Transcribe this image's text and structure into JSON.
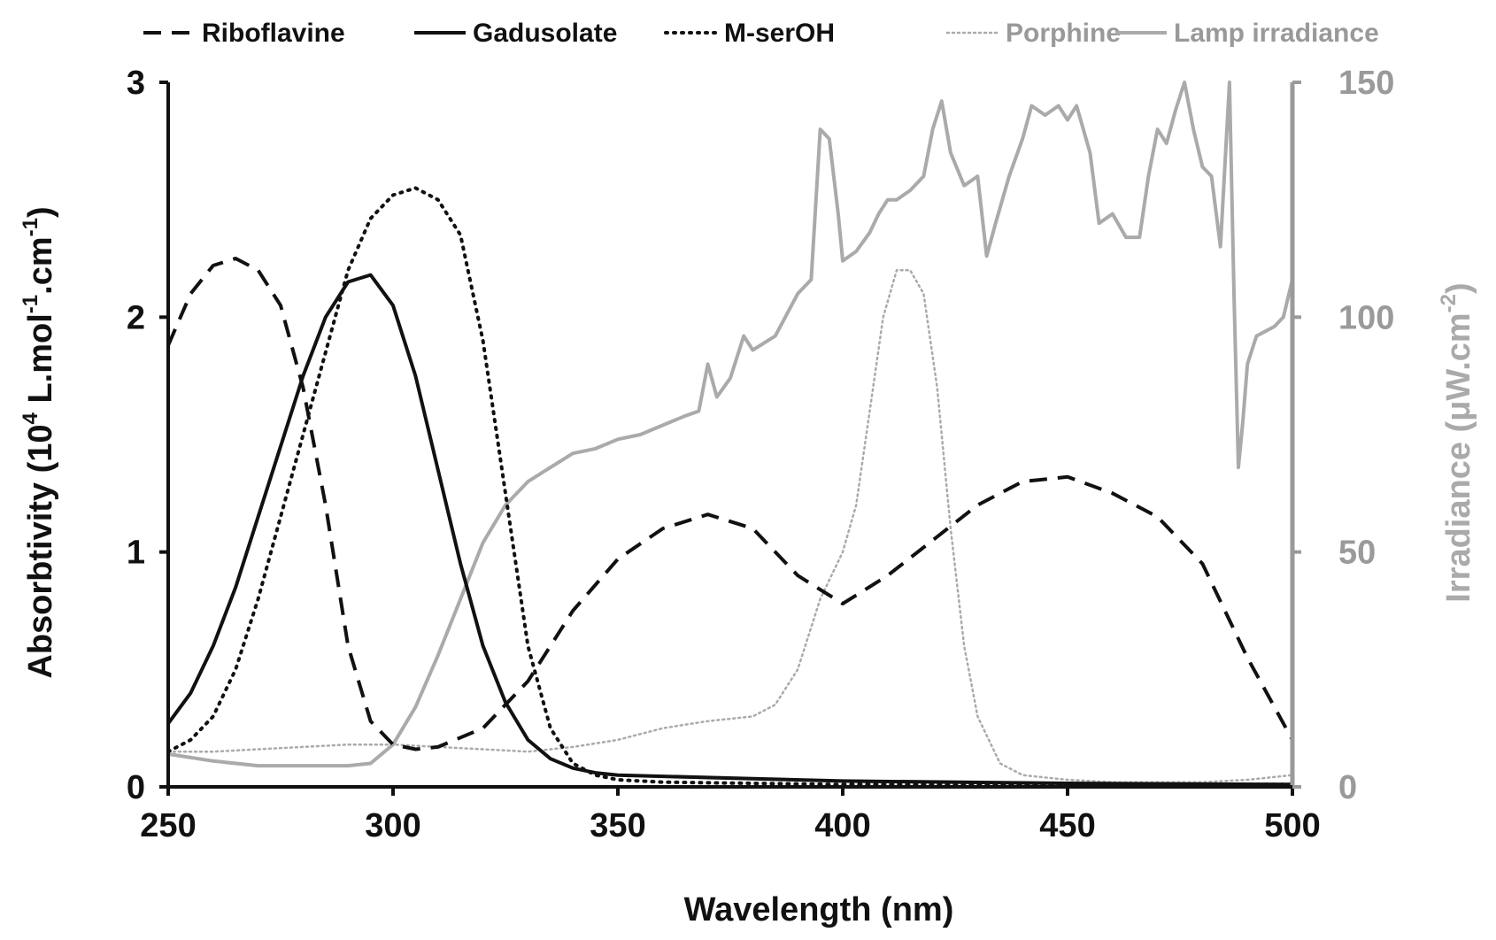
{
  "chart_data": {
    "type": "line",
    "title": "",
    "xlabel": "Wavelength (nm)",
    "ylabel_left": {
      "main": "Absorbtivity (10",
      "sup1": "4",
      "mid1": " L.mol",
      "sup2": "-1",
      "mid2": ".cm",
      "sup3": "-1",
      "end": ")"
    },
    "ylabel_right": {
      "main": "Irradiance (μW.cm",
      "sup": "-2",
      "end": ")"
    },
    "xlim": [
      250,
      500
    ],
    "ylim_left": [
      0,
      3
    ],
    "ylim_right": [
      0,
      150
    ],
    "xticks": [
      250,
      300,
      350,
      400,
      450,
      500
    ],
    "yticks_left": [
      0,
      1,
      2,
      3
    ],
    "yticks_right": [
      0,
      50,
      100,
      150
    ],
    "colors": {
      "black": "#111111",
      "gray": "#aaaaaa",
      "gray_dark": "#9a9a9a",
      "legend_gray": "#999999"
    },
    "legend": [
      {
        "name": "Riboflavine",
        "style": "dashed",
        "color": "#111111"
      },
      {
        "name": "Gadusolate",
        "style": "solid",
        "color": "#111111"
      },
      {
        "name": "M-serOH",
        "style": "dotted",
        "color": "#111111"
      },
      {
        "name": "Porphine",
        "style": "dotted-thin",
        "color": "#aaaaaa"
      },
      {
        "name": "Lamp irradiance",
        "style": "solid",
        "color": "#aaaaaa"
      }
    ],
    "series": [
      {
        "name": "Riboflavine",
        "axis": "left",
        "style": "dashed",
        "color": "#111111",
        "x": [
          250,
          255,
          260,
          265,
          270,
          275,
          280,
          285,
          290,
          295,
          300,
          305,
          310,
          320,
          330,
          340,
          350,
          360,
          370,
          380,
          390,
          400,
          410,
          420,
          430,
          440,
          450,
          460,
          470,
          480,
          490,
          500
        ],
        "y": [
          1.88,
          2.1,
          2.22,
          2.25,
          2.2,
          2.05,
          1.7,
          1.2,
          0.6,
          0.28,
          0.18,
          0.16,
          0.17,
          0.25,
          0.45,
          0.75,
          0.97,
          1.1,
          1.16,
          1.1,
          0.9,
          0.78,
          0.9,
          1.05,
          1.2,
          1.3,
          1.32,
          1.25,
          1.15,
          0.95,
          0.55,
          0.2
        ]
      },
      {
        "name": "Gadusolate",
        "axis": "left",
        "style": "solid",
        "color": "#111111",
        "x": [
          250,
          255,
          260,
          265,
          270,
          275,
          280,
          285,
          290,
          295,
          300,
          305,
          310,
          315,
          320,
          325,
          330,
          335,
          340,
          345,
          350,
          360,
          380,
          400,
          450,
          500
        ],
        "y": [
          0.27,
          0.4,
          0.6,
          0.85,
          1.15,
          1.45,
          1.75,
          2.0,
          2.15,
          2.18,
          2.05,
          1.75,
          1.35,
          0.95,
          0.6,
          0.36,
          0.2,
          0.12,
          0.08,
          0.06,
          0.05,
          0.045,
          0.035,
          0.025,
          0.015,
          0.01
        ]
      },
      {
        "name": "M-serOH",
        "axis": "left",
        "style": "dotted",
        "color": "#111111",
        "x": [
          250,
          255,
          260,
          265,
          270,
          275,
          280,
          285,
          290,
          295,
          300,
          305,
          310,
          315,
          320,
          325,
          330,
          335,
          340,
          345,
          350,
          360,
          400,
          450,
          500
        ],
        "y": [
          0.15,
          0.2,
          0.3,
          0.5,
          0.8,
          1.15,
          1.5,
          1.85,
          2.2,
          2.42,
          2.52,
          2.55,
          2.5,
          2.35,
          1.9,
          1.25,
          0.6,
          0.25,
          0.1,
          0.05,
          0.03,
          0.02,
          0.01,
          0.01,
          0.01
        ]
      },
      {
        "name": "Porphine",
        "axis": "left",
        "style": "dotted-thin",
        "color": "#aaaaaa",
        "x": [
          250,
          260,
          270,
          280,
          290,
          300,
          310,
          320,
          330,
          340,
          350,
          360,
          370,
          380,
          385,
          390,
          395,
          400,
          403,
          406,
          409,
          412,
          415,
          418,
          421,
          424,
          427,
          430,
          435,
          440,
          450,
          460,
          470,
          480,
          490,
          500
        ],
        "y": [
          0.15,
          0.15,
          0.16,
          0.17,
          0.18,
          0.18,
          0.17,
          0.16,
          0.15,
          0.17,
          0.2,
          0.25,
          0.28,
          0.3,
          0.35,
          0.5,
          0.8,
          1.0,
          1.2,
          1.6,
          2.0,
          2.2,
          2.2,
          2.1,
          1.7,
          1.1,
          0.6,
          0.3,
          0.1,
          0.05,
          0.03,
          0.02,
          0.02,
          0.02,
          0.03,
          0.05
        ]
      },
      {
        "name": "Lamp irradiance",
        "axis": "right",
        "style": "solid",
        "color": "#aaaaaa",
        "x": [
          250,
          260,
          270,
          280,
          290,
          295,
          300,
          305,
          310,
          315,
          320,
          325,
          330,
          335,
          340,
          345,
          350,
          355,
          360,
          365,
          368,
          370,
          372,
          375,
          378,
          380,
          385,
          390,
          393,
          395,
          397,
          399,
          400,
          403,
          406,
          408,
          410,
          412,
          415,
          418,
          420,
          422,
          424,
          427,
          430,
          432,
          434,
          437,
          440,
          442,
          445,
          448,
          450,
          452,
          455,
          457,
          460,
          463,
          466,
          468,
          470,
          472,
          474,
          476,
          478,
          480,
          482,
          484,
          486,
          487,
          488,
          489,
          490,
          492,
          494,
          496,
          498,
          500
        ],
        "y": [
          7,
          5.5,
          4.5,
          4.5,
          4.5,
          5,
          9,
          17,
          28,
          40,
          52,
          60,
          65,
          68,
          71,
          72,
          74,
          75,
          77,
          79,
          80,
          90,
          83,
          87,
          96,
          93,
          96,
          105,
          108,
          140,
          138,
          122,
          112,
          114,
          118,
          122,
          125,
          125,
          127,
          130,
          140,
          146,
          135,
          128,
          130,
          113,
          120,
          130,
          138,
          145,
          143,
          145,
          142,
          145,
          135,
          120,
          122,
          117,
          117,
          130,
          140,
          137,
          144,
          150,
          140,
          132,
          130,
          115,
          150,
          105,
          68,
          78,
          90,
          96,
          97,
          98,
          100,
          108
        ]
      }
    ]
  }
}
